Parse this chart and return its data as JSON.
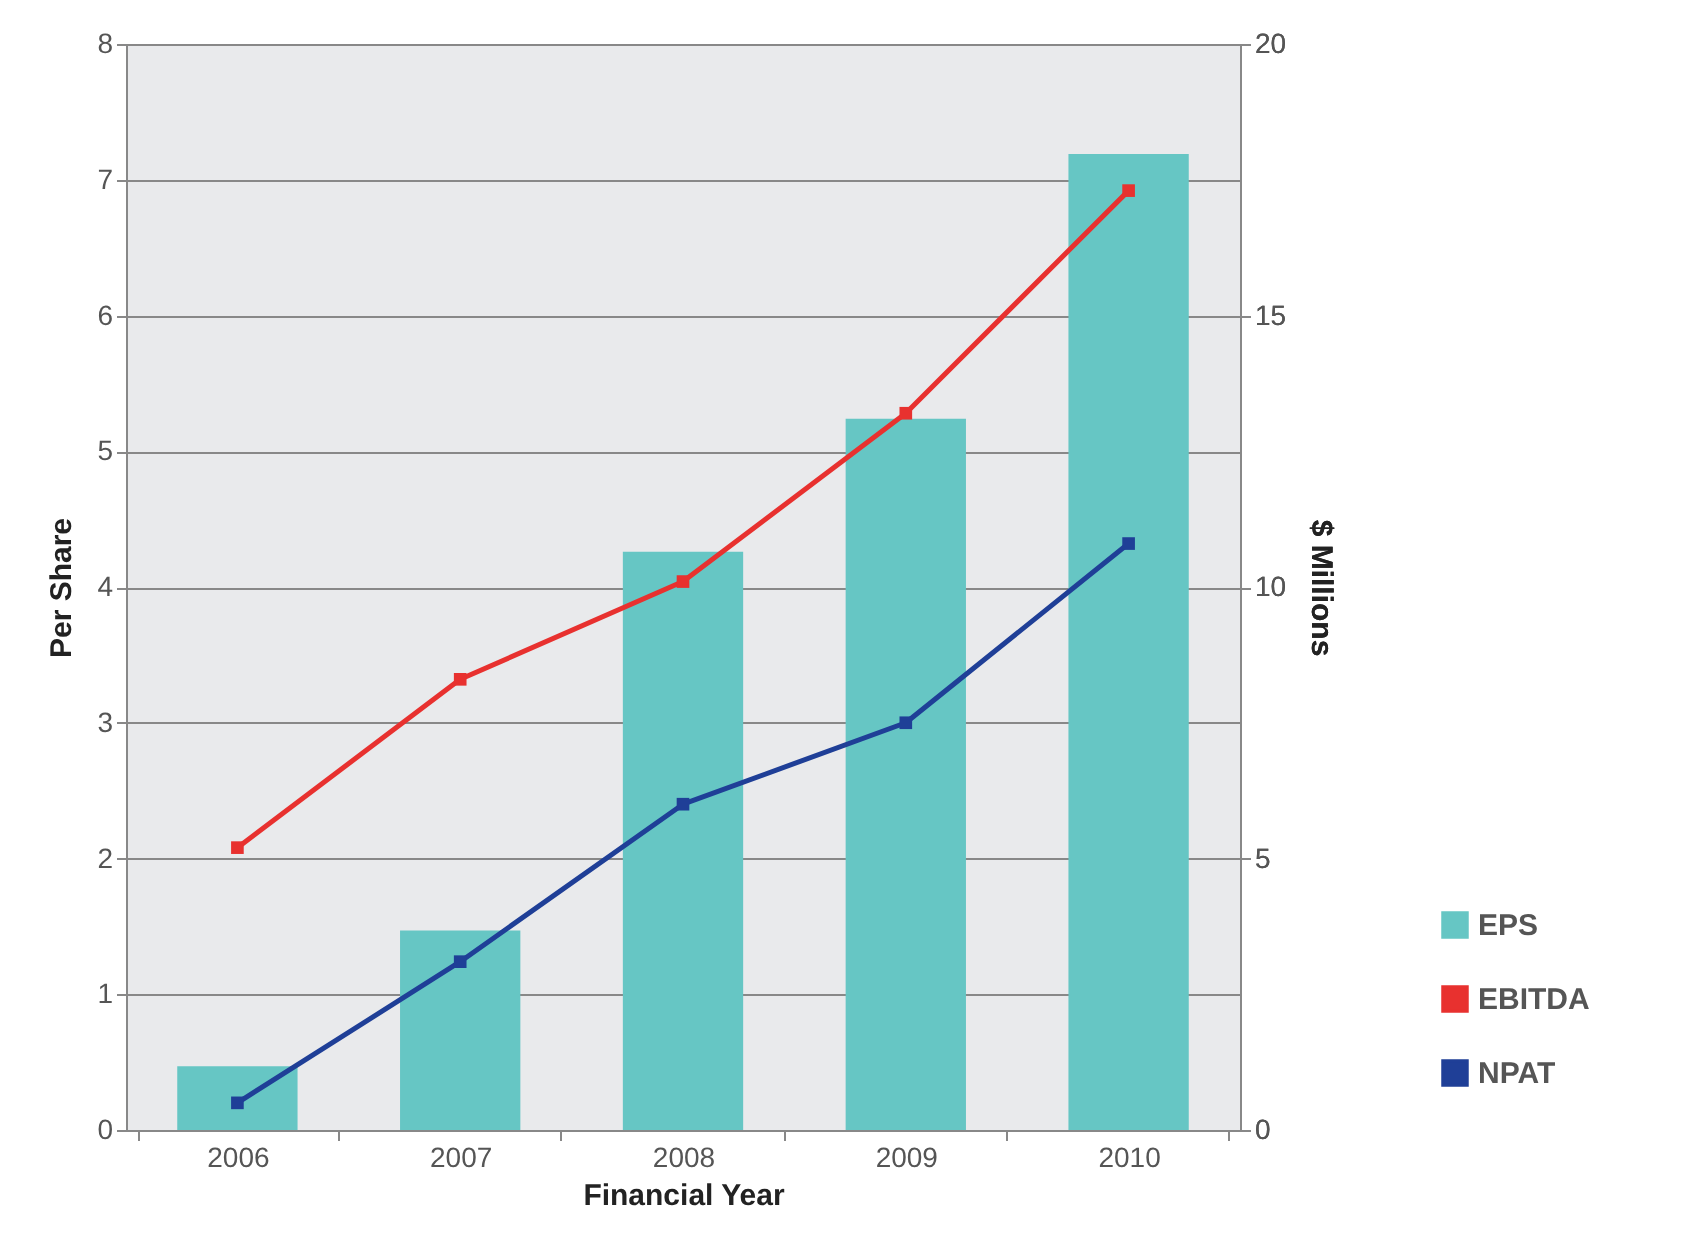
{
  "chart_data": {
    "type": "bar",
    "xlabel": "Financial Year",
    "ylabel": "Per Share",
    "y2label": "$ Millions",
    "categories": [
      "2006",
      "2007",
      "2008",
      "2009",
      "2010"
    ],
    "series": [
      {
        "name": "EPS",
        "color": "#66c6c4",
        "values": [
          0.47,
          1.47,
          4.26,
          5.24,
          7.19
        ]
      },
      {
        "name": "EBITDA",
        "type": "line",
        "axis": "y2",
        "color": "#e8312f",
        "values": [
          5.2,
          8.3,
          10.1,
          13.2,
          17.3
        ]
      },
      {
        "name": "NPAT",
        "type": "line",
        "axis": "y2",
        "color": "#1f3f97",
        "values": [
          0.5,
          3.1,
          6.0,
          7.5,
          10.8
        ]
      }
    ],
    "ylim": [
      0,
      8
    ],
    "yticks": [
      0,
      1,
      2,
      3,
      4,
      5,
      6,
      7,
      8
    ],
    "y2lim": [
      0,
      20
    ],
    "y2ticks": [
      0,
      5,
      10,
      15,
      20
    ],
    "grid": "y",
    "legend": "bottom right",
    "marker": "square",
    "line_style": "solid"
  }
}
